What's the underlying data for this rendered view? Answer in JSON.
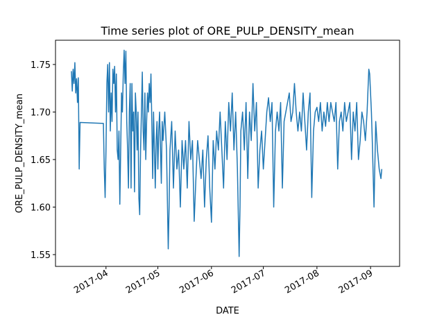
{
  "chart_data": {
    "type": "line",
    "title": "Time series plot of ORE_PULP_DENSITY_mean",
    "x_label": "DATE",
    "y_label": "ORE_PULP_DENSITY_mean",
    "color": "#1f77b4",
    "xlim": [
      17227.8,
      17426.8
    ],
    "ylim": [
      1.5376,
      1.7755
    ],
    "xticks": [
      {
        "value": 17257,
        "label": "2017-04"
      },
      {
        "value": 17287,
        "label": "2017-05"
      },
      {
        "value": 17318,
        "label": "2017-06"
      },
      {
        "value": 17348,
        "label": "2017-07"
      },
      {
        "value": 17379,
        "label": "2017-08"
      },
      {
        "value": 17410,
        "label": "2017-09"
      }
    ],
    "yticks": [
      {
        "value": 1.55,
        "label": "1.55"
      },
      {
        "value": 1.6,
        "label": "1.60"
      },
      {
        "value": 1.65,
        "label": "1.65"
      },
      {
        "value": 1.7,
        "label": "1.70"
      },
      {
        "value": 1.75,
        "label": "1.75"
      }
    ],
    "x": [
      17237,
      17237.5,
      17238,
      17238.5,
      17239,
      17239.5,
      17240,
      17240.5,
      17241,
      17241.5,
      17242,
      17255.5,
      17256,
      17256.5,
      17257,
      17257.5,
      17258,
      17258.5,
      17259,
      17259.5,
      17260,
      17260.5,
      17261,
      17261.5,
      17262,
      17262.5,
      17263,
      17263.5,
      17264,
      17264.5,
      17265,
      17265.5,
      17266,
      17266.5,
      17267,
      17267.5,
      17268,
      17268.5,
      17269,
      17269.5,
      17270,
      17270.5,
      17271,
      17271.5,
      17272,
      17272.5,
      17273,
      17273.5,
      17274,
      17274.5,
      17275,
      17275.5,
      17276,
      17276.5,
      17277,
      17277.5,
      17278,
      17278.5,
      17279,
      17279.5,
      17280,
      17280.5,
      17281,
      17281.5,
      17282,
      17282.5,
      17283,
      17283.5,
      17284,
      17284.5,
      17285,
      17285.5,
      17286,
      17286.5,
      17287,
      17287.5,
      17288,
      17289,
      17289.5,
      17290,
      17291,
      17292,
      17293,
      17293.5,
      17294,
      17295,
      17296,
      17297,
      17298,
      17299,
      17300,
      17301,
      17302,
      17303,
      17304,
      17305,
      17306,
      17307,
      17308,
      17309,
      17310,
      17311,
      17312,
      17313,
      17314,
      17315,
      17316,
      17317,
      17318,
      17319,
      17320,
      17321,
      17322,
      17323,
      17324,
      17325,
      17326,
      17327,
      17328,
      17329,
      17330,
      17331,
      17332,
      17333,
      17334,
      17334.5,
      17335,
      17336,
      17337,
      17338,
      17339,
      17340,
      17341,
      17342,
      17343,
      17344,
      17345,
      17346,
      17347,
      17348,
      17349,
      17350,
      17351,
      17352,
      17353,
      17354,
      17355,
      17356,
      17357,
      17358,
      17359,
      17360,
      17361,
      17362,
      17363,
      17364,
      17365,
      17366,
      17367,
      17368,
      17369,
      17370,
      17371,
      17372,
      17373,
      17374,
      17375,
      17376,
      17377,
      17378,
      17379,
      17380,
      17381,
      17382,
      17383,
      17384,
      17385,
      17386,
      17387,
      17388,
      17389,
      17390,
      17391,
      17392,
      17393,
      17394,
      17395,
      17396,
      17397,
      17398,
      17399,
      17400,
      17401,
      17402,
      17403,
      17404,
      17405,
      17406,
      17407,
      17408,
      17409,
      17409.5,
      17410,
      17410.5,
      17411,
      17412,
      17413,
      17414,
      17415,
      17416,
      17416.5
    ],
    "values": [
      1.743,
      1.722,
      1.745,
      1.73,
      1.752,
      1.72,
      1.735,
      1.71,
      1.736,
      1.64,
      1.689,
      1.688,
      1.64,
      1.61,
      1.66,
      1.73,
      1.75,
      1.7,
      1.752,
      1.68,
      1.72,
      1.69,
      1.745,
      1.73,
      1.748,
      1.7,
      1.74,
      1.66,
      1.65,
      1.68,
      1.603,
      1.66,
      1.72,
      1.7,
      1.74,
      1.765,
      1.73,
      1.764,
      1.69,
      1.66,
      1.62,
      1.7,
      1.73,
      1.62,
      1.73,
      1.68,
      1.7,
      1.616,
      1.72,
      1.7,
      1.66,
      1.7,
      1.61,
      1.592,
      1.66,
      1.7,
      1.742,
      1.68,
      1.66,
      1.72,
      1.65,
      1.69,
      1.72,
      1.7,
      1.73,
      1.71,
      1.74,
      1.69,
      1.63,
      1.7,
      1.66,
      1.62,
      1.67,
      1.69,
      1.64,
      1.68,
      1.7,
      1.625,
      1.69,
      1.67,
      1.7,
      1.66,
      1.556,
      1.6,
      1.66,
      1.69,
      1.62,
      1.68,
      1.64,
      1.66,
      1.6,
      1.67,
      1.64,
      1.67,
      1.62,
      1.69,
      1.65,
      1.67,
      1.585,
      1.63,
      1.67,
      1.65,
      1.63,
      1.66,
      1.6,
      1.65,
      1.675,
      1.62,
      1.584,
      1.67,
      1.64,
      1.68,
      1.66,
      1.7,
      1.66,
      1.62,
      1.69,
      1.65,
      1.71,
      1.68,
      1.72,
      1.66,
      1.7,
      1.64,
      1.548,
      1.6,
      1.68,
      1.7,
      1.66,
      1.71,
      1.63,
      1.7,
      1.67,
      1.73,
      1.68,
      1.71,
      1.62,
      1.66,
      1.68,
      1.64,
      1.67,
      1.7,
      1.715,
      1.69,
      1.71,
      1.6,
      1.68,
      1.7,
      1.68,
      1.71,
      1.62,
      1.69,
      1.7,
      1.71,
      1.72,
      1.69,
      1.7,
      1.73,
      1.7,
      1.68,
      1.7,
      1.68,
      1.72,
      1.69,
      1.66,
      1.7,
      1.72,
      1.61,
      1.68,
      1.7,
      1.705,
      1.69,
      1.71,
      1.68,
      1.7,
      1.685,
      1.71,
      1.69,
      1.71,
      1.7,
      1.69,
      1.71,
      1.64,
      1.69,
      1.7,
      1.68,
      1.71,
      1.69,
      1.7,
      1.71,
      1.65,
      1.7,
      1.68,
      1.71,
      1.65,
      1.67,
      1.7,
      1.69,
      1.67,
      1.7,
      1.745,
      1.74,
      1.72,
      1.7,
      1.67,
      1.6,
      1.69,
      1.66,
      1.64,
      1.63,
      1.64
    ]
  }
}
